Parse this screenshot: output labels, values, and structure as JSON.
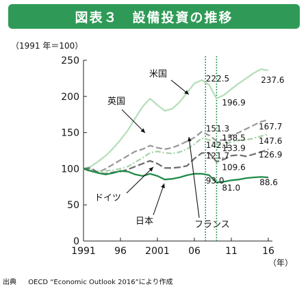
{
  "title": "図表３　設備投資の推移",
  "source": {
    "label": "出典",
    "text": "OECD “Economic Outlook 2016”により作成"
  },
  "chart_data": {
    "type": "line",
    "ylabel": "（1991 年＝100）",
    "xlabel": "（年）",
    "ylim": [
      0,
      250
    ],
    "xlim": [
      1991,
      2016
    ],
    "yticks": [
      0,
      50,
      100,
      150,
      200,
      250
    ],
    "xticks": [
      {
        "value": 1991,
        "label": "1991"
      },
      {
        "value": 1996,
        "label": "96"
      },
      {
        "value": 2001,
        "label": "2001"
      },
      {
        "value": 2006,
        "label": "06"
      },
      {
        "value": 2011,
        "label": "11"
      },
      {
        "value": 2016,
        "label": "16"
      }
    ],
    "highlight_years": [
      2007.5,
      2009
    ],
    "grid": false,
    "series": [
      {
        "name": "米国",
        "color": "#b5dfb9",
        "dash": "",
        "x": [
          1991,
          1992,
          1993,
          1994,
          1995,
          1996,
          1997,
          1998,
          1999,
          2000,
          2001,
          2002,
          2003,
          2004,
          2005,
          2006,
          2007,
          2008,
          2009,
          2010,
          2011,
          2012,
          2013,
          2014,
          2015,
          2016
        ],
        "values": [
          100,
          103,
          110,
          118,
          128,
          140,
          153,
          170,
          186,
          197,
          188,
          180,
          183,
          192,
          205,
          218,
          222.5,
          216,
          196.9,
          202,
          210,
          218,
          225,
          232,
          237.6,
          236
        ]
      },
      {
        "name": "英国",
        "color": "#9a9a9a",
        "dash": "9 4",
        "x": [
          1991,
          1992,
          1993,
          1994,
          1995,
          1996,
          1997,
          1998,
          1999,
          2000,
          2001,
          2002,
          2003,
          2004,
          2005,
          2006,
          2007,
          2008,
          2009,
          2010,
          2011,
          2012,
          2013,
          2014,
          2015,
          2016
        ],
        "values": [
          100,
          96,
          95,
          100,
          106,
          112,
          118,
          124,
          127,
          132,
          129,
          127,
          129,
          133,
          138,
          143,
          151.3,
          146,
          138.5,
          140,
          146,
          150,
          155,
          160,
          165,
          167.7
        ]
      },
      {
        "name": "フランス",
        "color": "#a8d3ab",
        "dash": "8 3 2 3",
        "x": [
          1991,
          1992,
          1993,
          1994,
          1995,
          1996,
          1997,
          1998,
          1999,
          2000,
          2001,
          2002,
          2003,
          2004,
          2005,
          2006,
          2007,
          2008,
          2009,
          2010,
          2011,
          2012,
          2013,
          2014,
          2015,
          2016
        ],
        "values": [
          100,
          99,
          96,
          97,
          98,
          100,
          103,
          109,
          115,
          122,
          124,
          122,
          121,
          123,
          127,
          134,
          142.1,
          140,
          133.9,
          134,
          137,
          139,
          140,
          142,
          145,
          147.6
        ]
      },
      {
        "name": "ドイツ",
        "color": "#707070",
        "dash": "10 4",
        "x": [
          1991,
          1992,
          1993,
          1994,
          1995,
          1996,
          1997,
          1998,
          1999,
          2000,
          2001,
          2002,
          2003,
          2004,
          2005,
          2006,
          2007,
          2008,
          2009,
          2010,
          2011,
          2012,
          2013,
          2014,
          2015,
          2016
        ],
        "values": [
          100,
          101,
          94,
          93,
          95,
          96,
          99,
          103,
          107,
          111,
          107,
          101,
          101,
          102,
          104,
          114,
          121.7,
          122,
          109.6,
          113,
          118,
          119,
          117,
          120,
          123,
          126.9
        ]
      },
      {
        "name": "日本",
        "color": "#1f8a47",
        "dash": "",
        "x": [
          1991,
          1992,
          1993,
          1994,
          1995,
          1996,
          1997,
          1998,
          1999,
          2000,
          2001,
          2002,
          2003,
          2004,
          2005,
          2006,
          2007,
          2008,
          2009,
          2010,
          2011,
          2012,
          2013,
          2014,
          2015,
          2016
        ],
        "values": [
          100,
          97,
          94,
          92,
          94,
          97,
          96,
          92,
          90,
          93,
          90,
          85,
          86,
          88,
          91,
          93,
          93.0,
          91,
          81.0,
          82,
          84,
          85,
          87,
          88,
          88.6,
          88
        ]
      }
    ],
    "series_labels": [
      {
        "series": "米国",
        "label": "米国"
      },
      {
        "series": "英国",
        "label": "英国"
      },
      {
        "series": "ドイツ",
        "label": "ドイツ"
      },
      {
        "series": "日本",
        "label": "日本"
      },
      {
        "series": "フランス",
        "label": "フランス"
      }
    ],
    "data_labels": [
      {
        "label": "222.5",
        "x": 2007,
        "y": 222.5
      },
      {
        "label": "196.9",
        "x": 2009,
        "y": 196.9
      },
      {
        "label": "237.6",
        "x": 2015,
        "y": 237.6
      },
      {
        "label": "151.3",
        "x": 2007,
        "y": 151.3
      },
      {
        "label": "138.5",
        "x": 2009,
        "y": 138.5
      },
      {
        "label": "167.7",
        "x": 2016,
        "y": 167.7
      },
      {
        "label": "147.6",
        "x": 2016,
        "y": 147.6
      },
      {
        "label": "142.1",
        "x": 2007,
        "y": 142.1
      },
      {
        "label": "133.9",
        "x": 2009,
        "y": 133.9
      },
      {
        "label": "121.7",
        "x": 2007,
        "y": 121.7
      },
      {
        "label": "109.6",
        "x": 2009,
        "y": 109.6
      },
      {
        "label": "126.9",
        "x": 2016,
        "y": 126.9
      },
      {
        "label": "93.0",
        "x": 2007,
        "y": 93.0
      },
      {
        "label": "81.0",
        "x": 2009,
        "y": 81.0
      },
      {
        "label": "88.6",
        "x": 2015,
        "y": 88.6
      }
    ]
  }
}
